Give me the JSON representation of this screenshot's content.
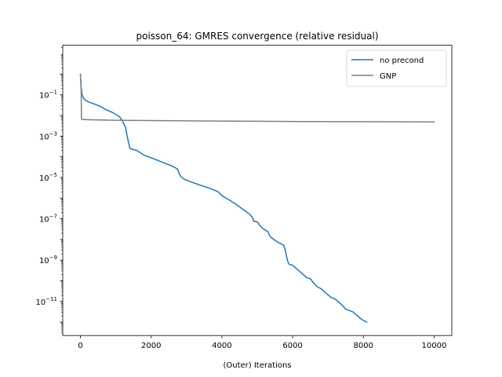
{
  "chart_data": {
    "type": "line",
    "title": "poisson_64: GMRES convergence (relative residual)",
    "xlabel": "(Outer) Iterations",
    "ylabel": "",
    "xlim": [
      -500,
      10500
    ],
    "ylim_log10": [
      -12.65,
      1.4
    ],
    "yscale": "log",
    "grid": false,
    "legend_position": "upper right",
    "x_ticks": [
      {
        "value": 0,
        "label": "0"
      },
      {
        "value": 2000,
        "label": "2000"
      },
      {
        "value": 4000,
        "label": "4000"
      },
      {
        "value": 6000,
        "label": "6000"
      },
      {
        "value": 8000,
        "label": "8000"
      },
      {
        "value": 10000,
        "label": "10000"
      }
    ],
    "y_ticks": [
      {
        "exp": -1,
        "base": "10",
        "sup": "−1"
      },
      {
        "exp": -3,
        "base": "10",
        "sup": "−3"
      },
      {
        "exp": -5,
        "base": "10",
        "sup": "−5"
      },
      {
        "exp": -7,
        "base": "10",
        "sup": "−7"
      },
      {
        "exp": -9,
        "base": "10",
        "sup": "−9"
      },
      {
        "exp": -11,
        "base": "10",
        "sup": "−11"
      }
    ],
    "series": [
      {
        "name": "no precond",
        "color": "#1f77b4",
        "x": [
          0,
          15,
          40,
          80,
          150,
          250,
          400,
          550,
          700,
          900,
          1100,
          1200,
          1280,
          1320,
          1360,
          1400,
          1600,
          1800,
          2000,
          2200,
          2400,
          2600,
          2750,
          2800,
          2850,
          2950,
          3100,
          3400,
          3700,
          3900,
          4000,
          4200,
          4400,
          4600,
          4800,
          4870,
          4900,
          5000,
          5100,
          5200,
          5300,
          5350,
          5400,
          5600,
          5750,
          5800,
          5830,
          5870,
          5900,
          6000,
          6100,
          6300,
          6400,
          6500,
          6600,
          6700,
          6800,
          7000,
          7100,
          7200,
          7400,
          7500,
          7700,
          7900,
          8000,
          8100
        ],
        "y_log10": [
          0.0,
          -0.5,
          -0.95,
          -1.15,
          -1.28,
          -1.36,
          -1.45,
          -1.55,
          -1.7,
          -1.85,
          -2.05,
          -2.3,
          -2.6,
          -3.0,
          -3.3,
          -3.6,
          -3.7,
          -3.92,
          -4.05,
          -4.18,
          -4.32,
          -4.45,
          -4.6,
          -4.85,
          -4.98,
          -5.1,
          -5.2,
          -5.38,
          -5.55,
          -5.7,
          -5.88,
          -6.08,
          -6.3,
          -6.55,
          -6.8,
          -6.95,
          -7.12,
          -7.15,
          -7.38,
          -7.52,
          -7.62,
          -7.82,
          -7.92,
          -8.15,
          -8.28,
          -8.58,
          -8.85,
          -9.1,
          -9.2,
          -9.25,
          -9.4,
          -9.7,
          -9.85,
          -9.9,
          -10.12,
          -10.3,
          -10.38,
          -10.68,
          -10.82,
          -10.88,
          -11.18,
          -11.38,
          -11.5,
          -11.8,
          -11.92,
          -12.0
        ]
      },
      {
        "name": "GNP",
        "color": "#7f7f7f",
        "x": [
          0,
          20,
          30,
          50,
          100,
          1000,
          3000,
          5000,
          7000,
          8000,
          10000
        ],
        "y_log10": [
          0.0,
          -0.8,
          -2.15,
          -2.2,
          -2.2,
          -2.23,
          -2.26,
          -2.28,
          -2.3,
          -2.3,
          -2.31
        ]
      }
    ]
  }
}
